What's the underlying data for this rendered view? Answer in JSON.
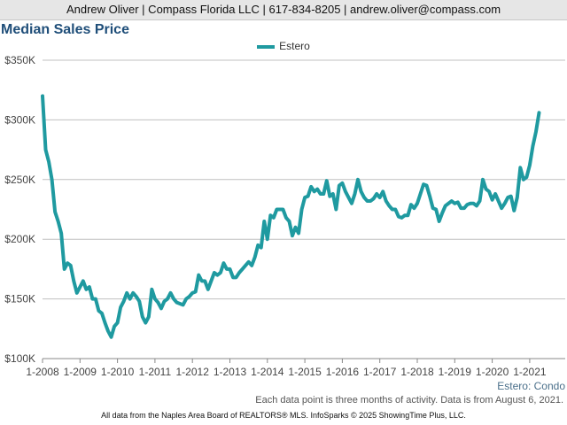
{
  "header": {
    "contact": "Andrew Oliver | Compass Florida LLC | 617-834-8205 | andrew.oliver@compass.com"
  },
  "chart_data": {
    "type": "line",
    "title": "Median Sales Price",
    "subtitle": "Estero: Condo",
    "note": "Each data point is three months of activity. Data is from August 6, 2021.",
    "footer": "All data from the Naples Area Board of REALTORS® MLS. InfoSparks © 2025 ShowingTime Plus, LLC.",
    "xlabel": "",
    "ylabel": "",
    "ylim": [
      100000,
      350000
    ],
    "y_ticks": [
      {
        "value": 100000,
        "label": "$100K"
      },
      {
        "value": 150000,
        "label": "$150K"
      },
      {
        "value": 200000,
        "label": "$200K"
      },
      {
        "value": 250000,
        "label": "$250K"
      },
      {
        "value": 300000,
        "label": "$300K"
      },
      {
        "value": 350000,
        "label": "$350K"
      }
    ],
    "x_ticks": [
      "1-2008",
      "1-2009",
      "1-2010",
      "1-2011",
      "1-2012",
      "1-2013",
      "1-2014",
      "1-2015",
      "1-2016",
      "1-2017",
      "1-2018",
      "1-2019",
      "1-2020",
      "1-2021"
    ],
    "x_start": "2008-01",
    "grid": true,
    "legend_position": "top-center",
    "colors": {
      "line": "#1f9aa0",
      "grid": "#c0c0c0",
      "axis": "#888888"
    },
    "series": [
      {
        "name": "Estero",
        "values": [
          320000,
          275000,
          265000,
          250000,
          223000,
          215000,
          205000,
          175000,
          180000,
          178000,
          165000,
          155000,
          160000,
          165000,
          158000,
          160000,
          150000,
          150000,
          140000,
          138000,
          130000,
          123000,
          118000,
          127000,
          130000,
          143000,
          148000,
          155000,
          150000,
          155000,
          152000,
          148000,
          135000,
          130000,
          135000,
          158000,
          150000,
          147000,
          142000,
          148000,
          150000,
          155000,
          150000,
          147000,
          146000,
          145000,
          150000,
          152000,
          155000,
          156000,
          170000,
          165000,
          165000,
          158000,
          165000,
          172000,
          170000,
          172000,
          180000,
          175000,
          175000,
          168000,
          168000,
          172000,
          175000,
          178000,
          181000,
          178000,
          185000,
          195000,
          193000,
          215000,
          200000,
          220000,
          218000,
          225000,
          225000,
          225000,
          218000,
          215000,
          203000,
          210000,
          205000,
          225000,
          235000,
          236000,
          244000,
          240000,
          242000,
          238000,
          238000,
          249000,
          236000,
          238000,
          225000,
          245000,
          247000,
          240000,
          235000,
          230000,
          238000,
          250000,
          240000,
          235000,
          232000,
          232000,
          234000,
          238000,
          235000,
          240000,
          232000,
          228000,
          225000,
          225000,
          219000,
          218000,
          220000,
          220000,
          229000,
          226000,
          230000,
          238000,
          246000,
          245000,
          236000,
          226000,
          225000,
          215000,
          222000,
          228000,
          230000,
          232000,
          230000,
          231000,
          226000,
          226000,
          229000,
          230000,
          230000,
          228000,
          232000,
          250000,
          242000,
          240000,
          233000,
          238000,
          232000,
          226000,
          230000,
          235000,
          236000,
          224000,
          235000,
          260000,
          250000,
          252000,
          262000,
          278000,
          290000,
          306000
        ]
      }
    ]
  }
}
